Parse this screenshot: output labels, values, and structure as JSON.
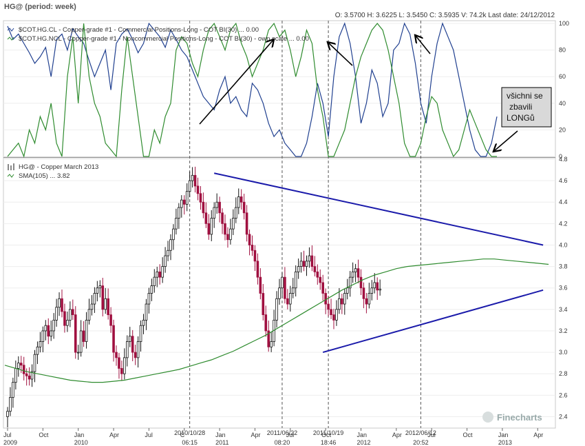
{
  "header": {
    "title": "HG@ (period: week)",
    "quote": "O: 3.5700  H: 3.6225  L: 3.5450  C: 3.5935  V: 74.2k  Last date: 24/12/2012"
  },
  "colors": {
    "commercial": "#1f3f8f",
    "noncommercial": "#2e8b2e",
    "sma": "#2e8b2e",
    "up": "#111111",
    "down": "#a01040",
    "trend": "#1a1aaa",
    "vline": "#555555"
  },
  "upper_legend": [
    "$COT.HG.CL - Copper-grade #1 - Commercial Positions-Long - COT BI(30) ... 0.00",
    "$COT.HG.NCL - Copper-grade #1 - Noncommercial Positions-Long - COT BI(30) - own scale ... 0.00"
  ],
  "lower_legend": [
    "HG@ - Copper March 2013",
    "SMA(105) ... 3.82"
  ],
  "annotation": {
    "lines": [
      "všichni se",
      "zbavili",
      "LONGů"
    ]
  },
  "watermark": "Finecharts",
  "x_axis": {
    "labels": [
      {
        "t": 0,
        "top": "Jul",
        "bottom": "2009"
      },
      {
        "t": 13,
        "top": "Oct",
        "bottom": ""
      },
      {
        "t": 26,
        "top": "Jan",
        "bottom": "2010"
      },
      {
        "t": 39,
        "top": "Apr",
        "bottom": ""
      },
      {
        "t": 52,
        "top": "Jul",
        "bottom": ""
      },
      {
        "t": 65,
        "top": "C",
        "bottom": ""
      },
      {
        "t": 78,
        "top": "Jan",
        "bottom": "2011"
      },
      {
        "t": 91,
        "top": "Apr",
        "bottom": ""
      },
      {
        "t": 104,
        "top": "Jul",
        "bottom": ""
      },
      {
        "t": 117,
        "top": "Oct",
        "bottom": ""
      },
      {
        "t": 130,
        "top": "Jan",
        "bottom": "2012"
      },
      {
        "t": 143,
        "top": "Apr",
        "bottom": ""
      },
      {
        "t": 156,
        "top": "Jul",
        "bottom": ""
      },
      {
        "t": 169,
        "top": "Oct",
        "bottom": ""
      },
      {
        "t": 182,
        "top": "Jan",
        "bottom": "2013"
      },
      {
        "t": 195,
        "top": "Apr",
        "bottom": ""
      }
    ],
    "markers": [
      {
        "t": 67,
        "top": "2010/10/28",
        "bottom": "06:15"
      },
      {
        "t": 101,
        "top": "2011/06/22",
        "bottom": "08:20"
      },
      {
        "t": 118,
        "top": "2011/10/19",
        "bottom": "18:46"
      },
      {
        "t": 152,
        "top": "2012/06/12",
        "bottom": "20:52"
      }
    ]
  },
  "chart_data": [
    {
      "type": "line",
      "name": "COT index (upper panel)",
      "ylim": [
        0,
        100
      ],
      "yticks": [
        0,
        20,
        40,
        60,
        80,
        100
      ],
      "x": [
        0,
        2,
        4,
        6,
        8,
        10,
        12,
        14,
        16,
        18,
        20,
        22,
        24,
        26,
        28,
        30,
        32,
        34,
        36,
        38,
        40,
        42,
        44,
        46,
        48,
        50,
        52,
        54,
        56,
        58,
        60,
        62,
        64,
        66,
        68,
        70,
        72,
        74,
        76,
        78,
        80,
        82,
        84,
        86,
        88,
        90,
        92,
        94,
        96,
        98,
        100,
        102,
        104,
        106,
        108,
        110,
        112,
        114,
        116,
        118,
        120,
        122,
        124,
        126,
        128,
        130,
        132,
        134,
        136,
        138,
        140,
        142,
        144,
        146,
        148,
        150,
        152,
        154,
        156,
        158,
        160,
        162,
        164,
        166,
        168,
        170,
        172,
        174,
        176,
        178,
        180
      ],
      "series": [
        {
          "name": "$COT.HG.CL",
          "values": [
            98,
            88,
            92,
            85,
            78,
            70,
            75,
            82,
            60,
            88,
            92,
            80,
            96,
            90,
            85,
            72,
            60,
            70,
            80,
            50,
            85,
            92,
            96,
            88,
            78,
            85,
            100,
            95,
            90,
            82,
            95,
            88,
            80,
            75,
            65,
            55,
            45,
            40,
            35,
            50,
            60,
            40,
            45,
            35,
            30,
            55,
            50,
            40,
            25,
            15,
            20,
            10,
            5,
            0,
            0,
            10,
            30,
            55,
            40,
            15,
            60,
            90,
            100,
            85,
            60,
            25,
            40,
            65,
            55,
            30,
            40,
            80,
            85,
            100,
            92,
            70,
            40,
            25,
            60,
            85,
            100,
            90,
            80,
            60,
            40,
            20,
            5,
            0,
            0,
            10,
            30
          ]
        },
        {
          "name": "$COT.HG.NCL",
          "values": [
            0,
            5,
            10,
            0,
            20,
            10,
            30,
            20,
            40,
            10,
            0,
            60,
            90,
            40,
            100,
            60,
            40,
            30,
            10,
            5,
            0,
            50,
            90,
            60,
            30,
            0,
            0,
            20,
            10,
            30,
            40,
            80,
            90,
            85,
            70,
            60,
            80,
            95,
            100,
            90,
            80,
            95,
            100,
            85,
            75,
            60,
            70,
            80,
            95,
            100,
            90,
            95,
            80,
            60,
            75,
            95,
            85,
            50,
            30,
            0,
            0,
            10,
            20,
            40,
            60,
            75,
            85,
            95,
            100,
            95,
            80,
            60,
            40,
            10,
            0,
            0,
            10,
            30,
            45,
            40,
            20,
            10,
            0,
            5,
            20,
            35,
            25,
            15,
            5,
            0,
            0
          ]
        }
      ]
    },
    {
      "type": "candlestick",
      "name": "HG@ - Copper March 2013",
      "ylim": [
        2.3,
        4.8
      ],
      "yticks": [
        2.4,
        2.6,
        2.8,
        3.0,
        3.2,
        3.4,
        3.6,
        3.8,
        4.0,
        4.2,
        4.4,
        4.6,
        4.8
      ],
      "x_start": "2009-07",
      "weekly_close": [
        2.45,
        2.58,
        2.72,
        2.85,
        2.9,
        2.88,
        2.8,
        2.78,
        2.75,
        2.82,
        2.98,
        3.05,
        3.1,
        3.2,
        3.25,
        3.15,
        3.2,
        3.3,
        3.42,
        3.5,
        3.38,
        3.25,
        3.3,
        3.4,
        3.35,
        3.0,
        3.0,
        3.2,
        3.1,
        3.3,
        3.4,
        3.45,
        3.55,
        3.6,
        3.62,
        3.4,
        3.5,
        3.35,
        3.25,
        3.0,
        2.95,
        2.85,
        2.8,
        2.95,
        3.1,
        3.15,
        3.0,
        2.95,
        3.1,
        3.25,
        3.3,
        3.45,
        3.55,
        3.62,
        3.7,
        3.75,
        3.7,
        3.8,
        3.9,
        3.95,
        4.05,
        4.15,
        4.25,
        4.35,
        4.42,
        4.38,
        4.5,
        4.6,
        4.65,
        4.55,
        4.48,
        4.4,
        4.3,
        4.2,
        4.1,
        4.25,
        4.35,
        4.4,
        4.3,
        4.2,
        4.1,
        4.05,
        4.15,
        4.25,
        4.35,
        4.45,
        4.4,
        4.3,
        4.1,
        4.0,
        3.95,
        3.85,
        3.7,
        3.55,
        3.35,
        3.2,
        3.05,
        3.1,
        3.3,
        3.5,
        3.6,
        3.7,
        3.5,
        3.45,
        3.55,
        3.6,
        3.75,
        3.8,
        3.85,
        3.8,
        3.85,
        3.9,
        3.8,
        3.75,
        3.7,
        3.65,
        3.55,
        3.45,
        3.4,
        3.35,
        3.3,
        3.4,
        3.5,
        3.45,
        3.55,
        3.6,
        3.7,
        3.75,
        3.78,
        3.7,
        3.6,
        3.5,
        3.45,
        3.55,
        3.6,
        3.65,
        3.58,
        3.59
      ],
      "sma": {
        "name": "SMA(105)",
        "last": 3.82,
        "values": [
          2.88,
          2.85,
          2.82,
          2.8,
          2.78,
          2.76,
          2.74,
          2.73,
          2.72,
          2.72,
          2.73,
          2.74,
          2.76,
          2.78,
          2.8,
          2.82,
          2.84,
          2.87,
          2.9,
          2.93,
          2.97,
          3.01,
          3.06,
          3.11,
          3.16,
          3.22,
          3.28,
          3.34,
          3.4,
          3.46,
          3.52,
          3.58,
          3.63,
          3.68,
          3.72,
          3.75,
          3.78,
          3.8,
          3.81,
          3.82,
          3.83,
          3.84,
          3.85,
          3.86,
          3.87,
          3.87,
          3.86,
          3.85,
          3.84,
          3.83,
          3.82
        ]
      },
      "trendlines": [
        {
          "name": "upper",
          "from": [
            76,
            4.67
          ],
          "to": [
            197,
            4.0
          ]
        },
        {
          "name": "lower",
          "from": [
            116,
            3.0
          ],
          "to": [
            197,
            3.58
          ]
        }
      ]
    }
  ]
}
